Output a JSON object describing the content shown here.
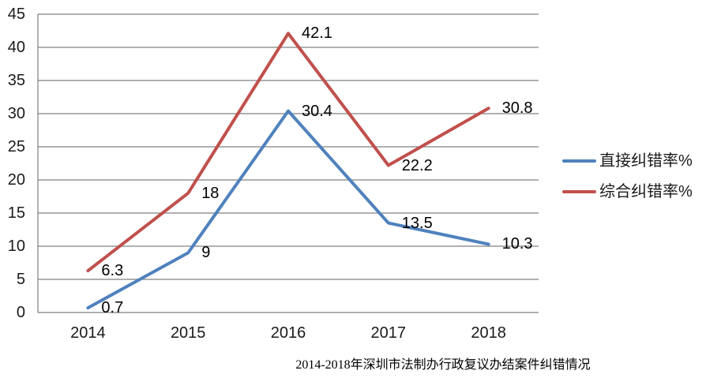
{
  "chart_data": {
    "type": "line",
    "title": "2014-2018年深圳市法制办行政复议办结案件纠错情况",
    "categories": [
      "2014",
      "2015",
      "2016",
      "2017",
      "2018"
    ],
    "series": [
      {
        "name": "直接纠错率%",
        "color": "#4F81BD",
        "values": [
          0.7,
          9,
          30.4,
          13.5,
          10.3
        ]
      },
      {
        "name": "综合纠错率%",
        "color": "#C0504D",
        "values": [
          6.3,
          18,
          42.1,
          22.2,
          30.8
        ]
      }
    ],
    "ylim": [
      0,
      45
    ],
    "ytick_step": 5,
    "grid": true,
    "legend_position": "right",
    "axis_color": "#808080",
    "label_color": "#000000"
  }
}
